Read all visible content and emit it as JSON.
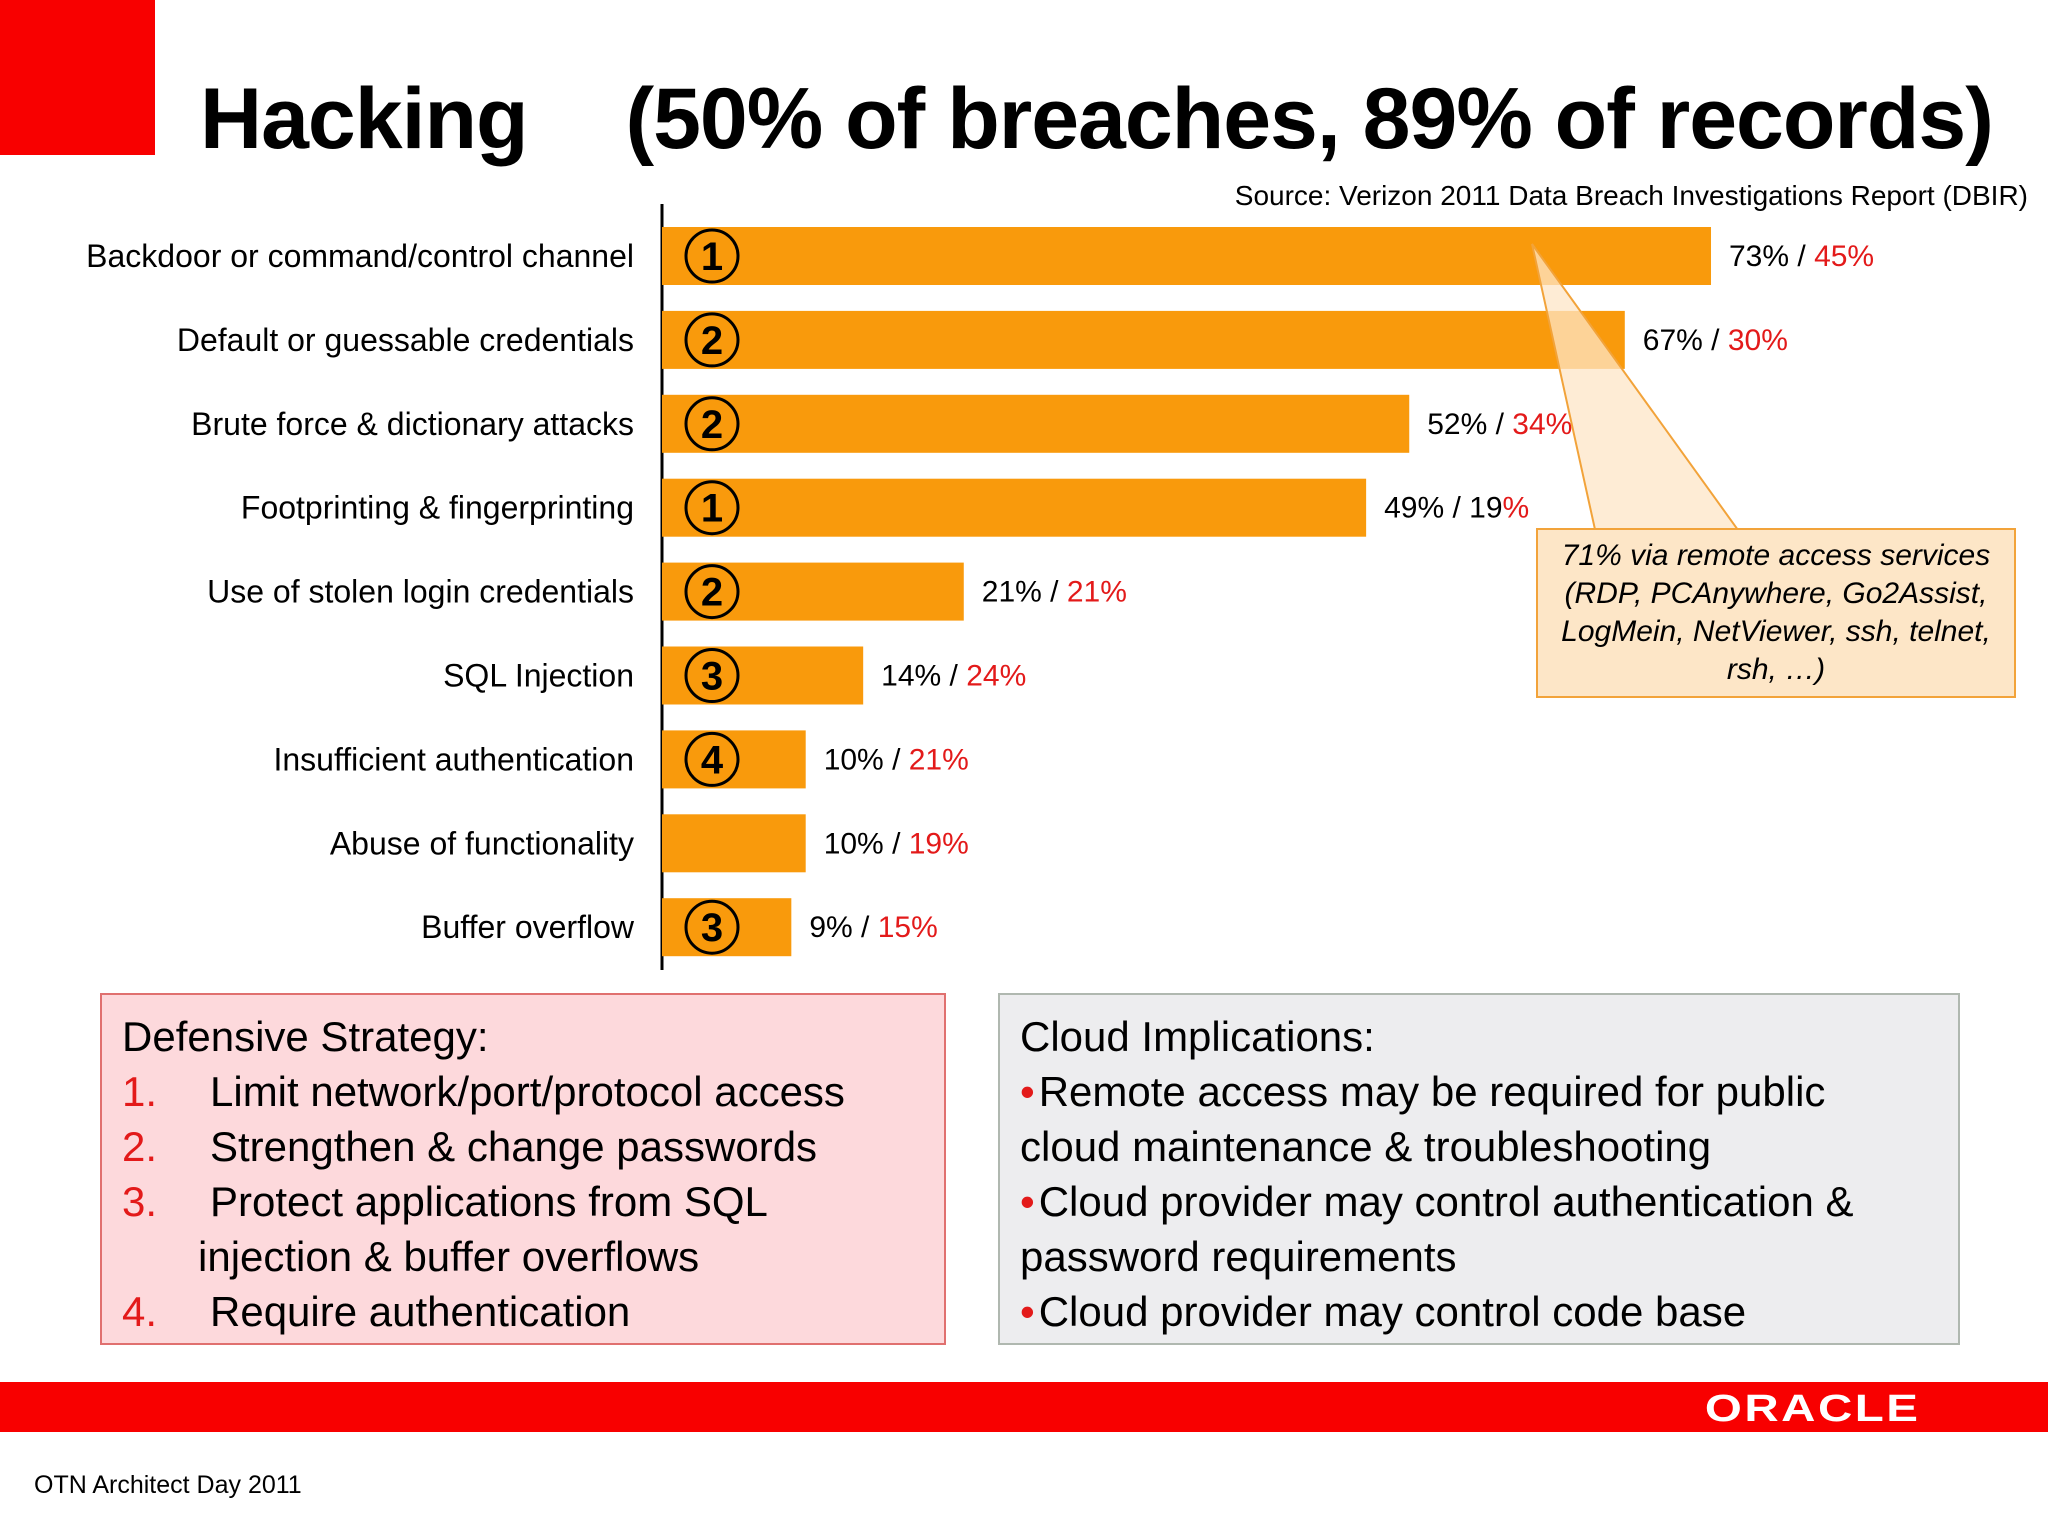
{
  "slide": {
    "title_main": "Hacking",
    "title_sub": "(50% of breaches, 89% of records)",
    "source": "Source: Verizon 2011 Data Breach Investigations Report (DBIR)",
    "footer_text": "OTN Architect Day 2011",
    "logo_text": "ORACLE"
  },
  "colors": {
    "bar": "#f99a0c",
    "brand_red": "#f80000",
    "accent_red": "#e31a1a",
    "callout_fill": "#fde6c7",
    "callout_border": "#f2a33a"
  },
  "chart_data": {
    "type": "bar",
    "orientation": "horizontal",
    "categories": [
      "Backdoor or command/control channel",
      "Default or guessable credentials",
      "Brute force & dictionary attacks",
      "Footprinting & fingerprinting",
      "Use of stolen login credentials",
      "SQL Injection",
      "Insufficient authentication",
      "Abuse of functionality",
      "Buffer overflow"
    ],
    "series": [
      {
        "name": "",
        "values": [
          73,
          67,
          52,
          49,
          21,
          14,
          10,
          10,
          9
        ]
      },
      {
        "name": "",
        "values": [
          45,
          30,
          34,
          19,
          21,
          24,
          21,
          19,
          15
        ]
      }
    ],
    "ranks": [
      "1",
      "2",
      "2",
      "1",
      "2",
      "3",
      "4",
      "",
      "3"
    ],
    "value_labels": [
      [
        "73% / ",
        "45%"
      ],
      [
        "67% / ",
        "30%"
      ],
      [
        "52% / ",
        "34%"
      ],
      [
        "49% / 19",
        "%"
      ],
      [
        "21% / ",
        "21%"
      ],
      [
        "14% / ",
        "24%"
      ],
      [
        "10% / ",
        "21%"
      ],
      [
        "10% / ",
        "19%"
      ],
      [
        "9% / ",
        "15%"
      ]
    ],
    "bar_series": "breaches",
    "grid": false,
    "callout": "71% via remote access services (RDP, PCAnywhere, Go2Assist, LogMein, NetViewer, ssh, telnet, rsh, …)"
  },
  "defensive": {
    "heading": "Defensive Strategy:",
    "items": [
      {
        "num": "1.",
        "text": "Limit network/port/protocol access"
      },
      {
        "num": "2.",
        "text": "Strengthen & change passwords"
      },
      {
        "num": "3.",
        "text": "Protect applications from SQL",
        "cont": "injection & buffer overflows"
      },
      {
        "num": "4.",
        "text": "Require authentication"
      }
    ]
  },
  "cloud": {
    "heading": "Cloud Implications:",
    "bullet": "•",
    "items": [
      {
        "text": "Remote access may be required for public",
        "cont": "cloud maintenance & troubleshooting"
      },
      {
        "text": "Cloud provider may control authentication &",
        "cont": "password requirements"
      },
      {
        "text": "Cloud provider may control code base"
      }
    ]
  }
}
